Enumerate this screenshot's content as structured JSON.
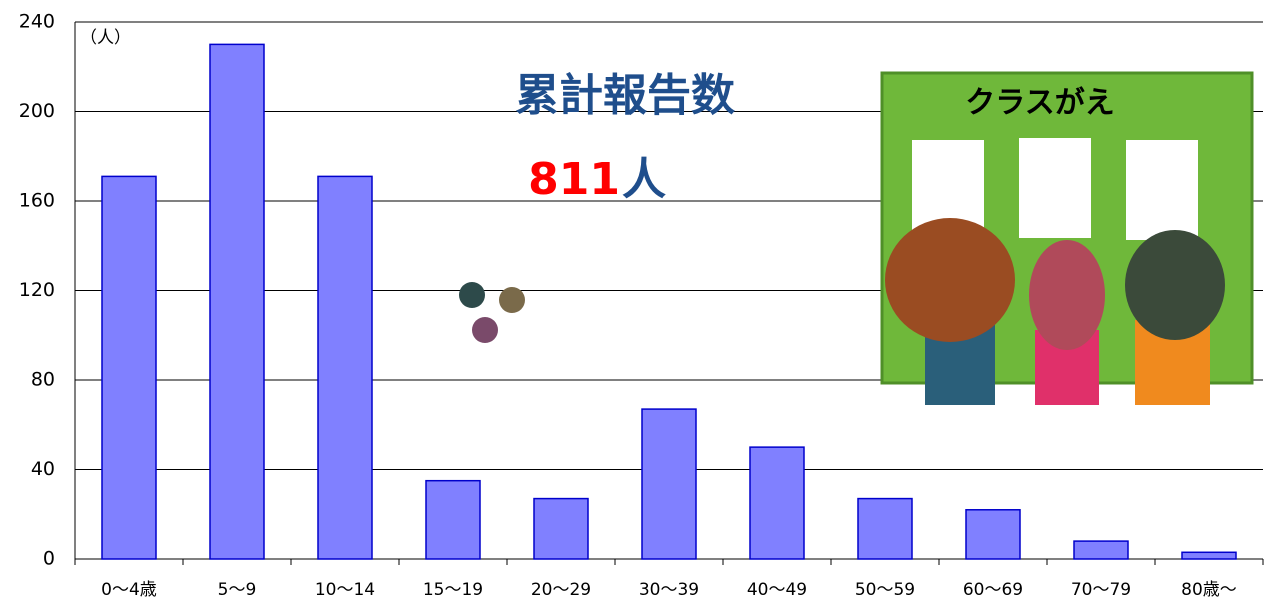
{
  "chart_data": {
    "type": "bar",
    "categories": [
      "0～4歳",
      "5～9",
      "10～14",
      "15～19",
      "20～29",
      "30～39",
      "40～49",
      "50～59",
      "60～69",
      "70～79",
      "80歳～"
    ],
    "values": [
      171,
      230,
      171,
      35,
      27,
      67,
      50,
      27,
      22,
      8,
      3
    ],
    "color": "#8080ff",
    "ylim": [
      0,
      240
    ],
    "yticks": [
      0,
      40,
      80,
      120,
      160,
      200,
      240
    ],
    "grid": true,
    "unit_label": "（人）",
    "annotations": [
      "累計報告数",
      "811",
      "人"
    ],
    "illustration_text": "クラスがえ"
  }
}
